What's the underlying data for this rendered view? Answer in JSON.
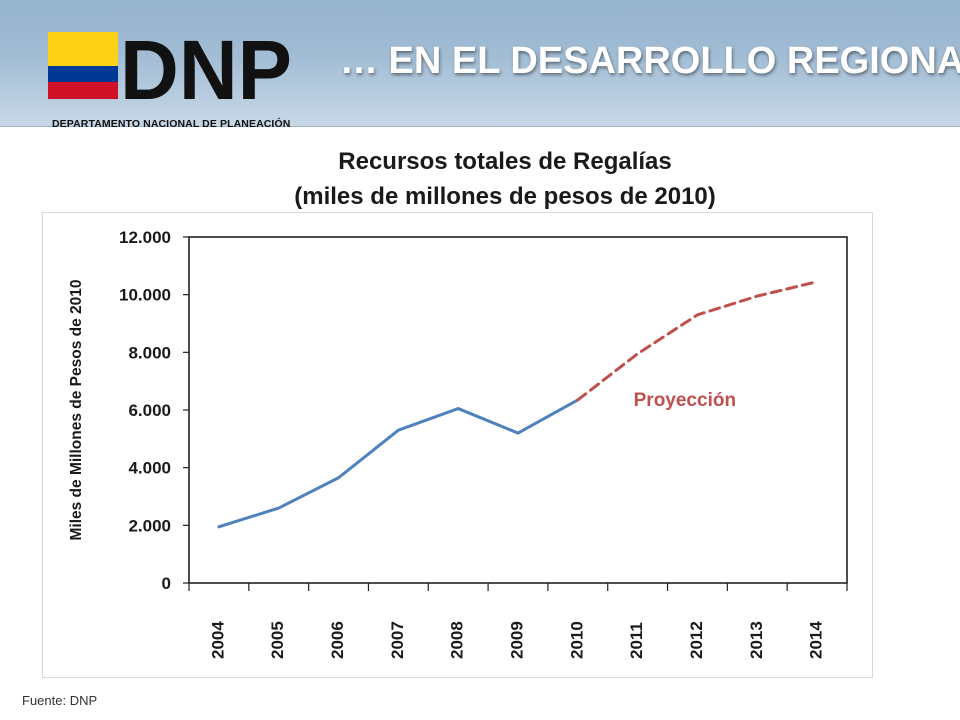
{
  "header": {
    "title": "… EN EL DESARROLLO REGIONAL",
    "logo_text": "DNP",
    "logo_subtext": "DEPARTAMENTO NACIONAL DE PLANEACIÓN"
  },
  "colors": {
    "historical_line": "#4f81bd",
    "projection_line": "#c0504d",
    "flag_yellow": "#fcd116",
    "flag_blue": "#003893",
    "flag_red": "#ce1126"
  },
  "chart_data": {
    "type": "line",
    "title_line1": "Recursos totales de Regalías",
    "title_line2": "(miles de millones de pesos de 2010)",
    "xlabel": "",
    "ylabel": "Miles de Millones de Pesos de 2010",
    "categories": [
      "2004",
      "2005",
      "2006",
      "2007",
      "2008",
      "2009",
      "2010",
      "2011",
      "2012",
      "2013",
      "2014"
    ],
    "ylim": [
      0,
      12000
    ],
    "yticks": [
      0,
      2000,
      4000,
      6000,
      8000,
      10000,
      12000
    ],
    "ytick_labels": [
      "0",
      "2.000",
      "4.000",
      "6.000",
      "8.000",
      "10.000",
      "12.000"
    ],
    "grid": false,
    "series": [
      {
        "style": "solid",
        "x": [
          "2004",
          "2005",
          "2006",
          "2007",
          "2008",
          "2009",
          "2010"
        ],
        "values": [
          1950,
          2600,
          3650,
          5300,
          6050,
          5200,
          6350
        ]
      },
      {
        "style": "dashed",
        "x": [
          "2010",
          "2011",
          "2012",
          "2013",
          "2014"
        ],
        "values": [
          6350,
          7950,
          9300,
          9950,
          10450
        ]
      }
    ],
    "annotations": [
      {
        "text": "Proyección",
        "x": "2011",
        "y": 6000
      }
    ]
  },
  "footer": {
    "source": "Fuente: DNP"
  }
}
